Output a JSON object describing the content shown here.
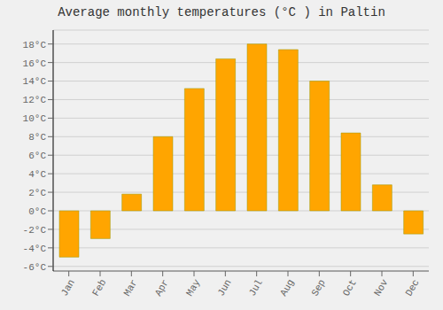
{
  "chart_data": {
    "type": "bar",
    "title": "Average monthly temperatures (°C ) in Paltin",
    "categories": [
      "Jan",
      "Feb",
      "Mar",
      "Apr",
      "May",
      "Jun",
      "Jul",
      "Aug",
      "Sep",
      "Oct",
      "Nov",
      "Dec"
    ],
    "values": [
      -5.0,
      -3.0,
      1.8,
      8.0,
      13.2,
      16.4,
      18.0,
      17.4,
      14.0,
      8.4,
      2.8,
      -2.5
    ],
    "color": "#FFA500",
    "ylim": [
      -6.5,
      19.5
    ],
    "yticks": [
      {
        "value": -6,
        "label": "-6°C"
      },
      {
        "value": -4,
        "label": "-4°C"
      },
      {
        "value": -2,
        "label": "-2°C"
      },
      {
        "value": 0,
        "label": "0°C"
      },
      {
        "value": 2,
        "label": "2°C"
      },
      {
        "value": 4,
        "label": "4°C"
      },
      {
        "value": 6,
        "label": "6°C"
      },
      {
        "value": 8,
        "label": "8°C"
      },
      {
        "value": 10,
        "label": "10°C"
      },
      {
        "value": 12,
        "label": "12°C"
      },
      {
        "value": 14,
        "label": "14°C"
      },
      {
        "value": 16,
        "label": "16°C"
      },
      {
        "value": 18,
        "label": "18°C"
      }
    ],
    "grid": true
  }
}
